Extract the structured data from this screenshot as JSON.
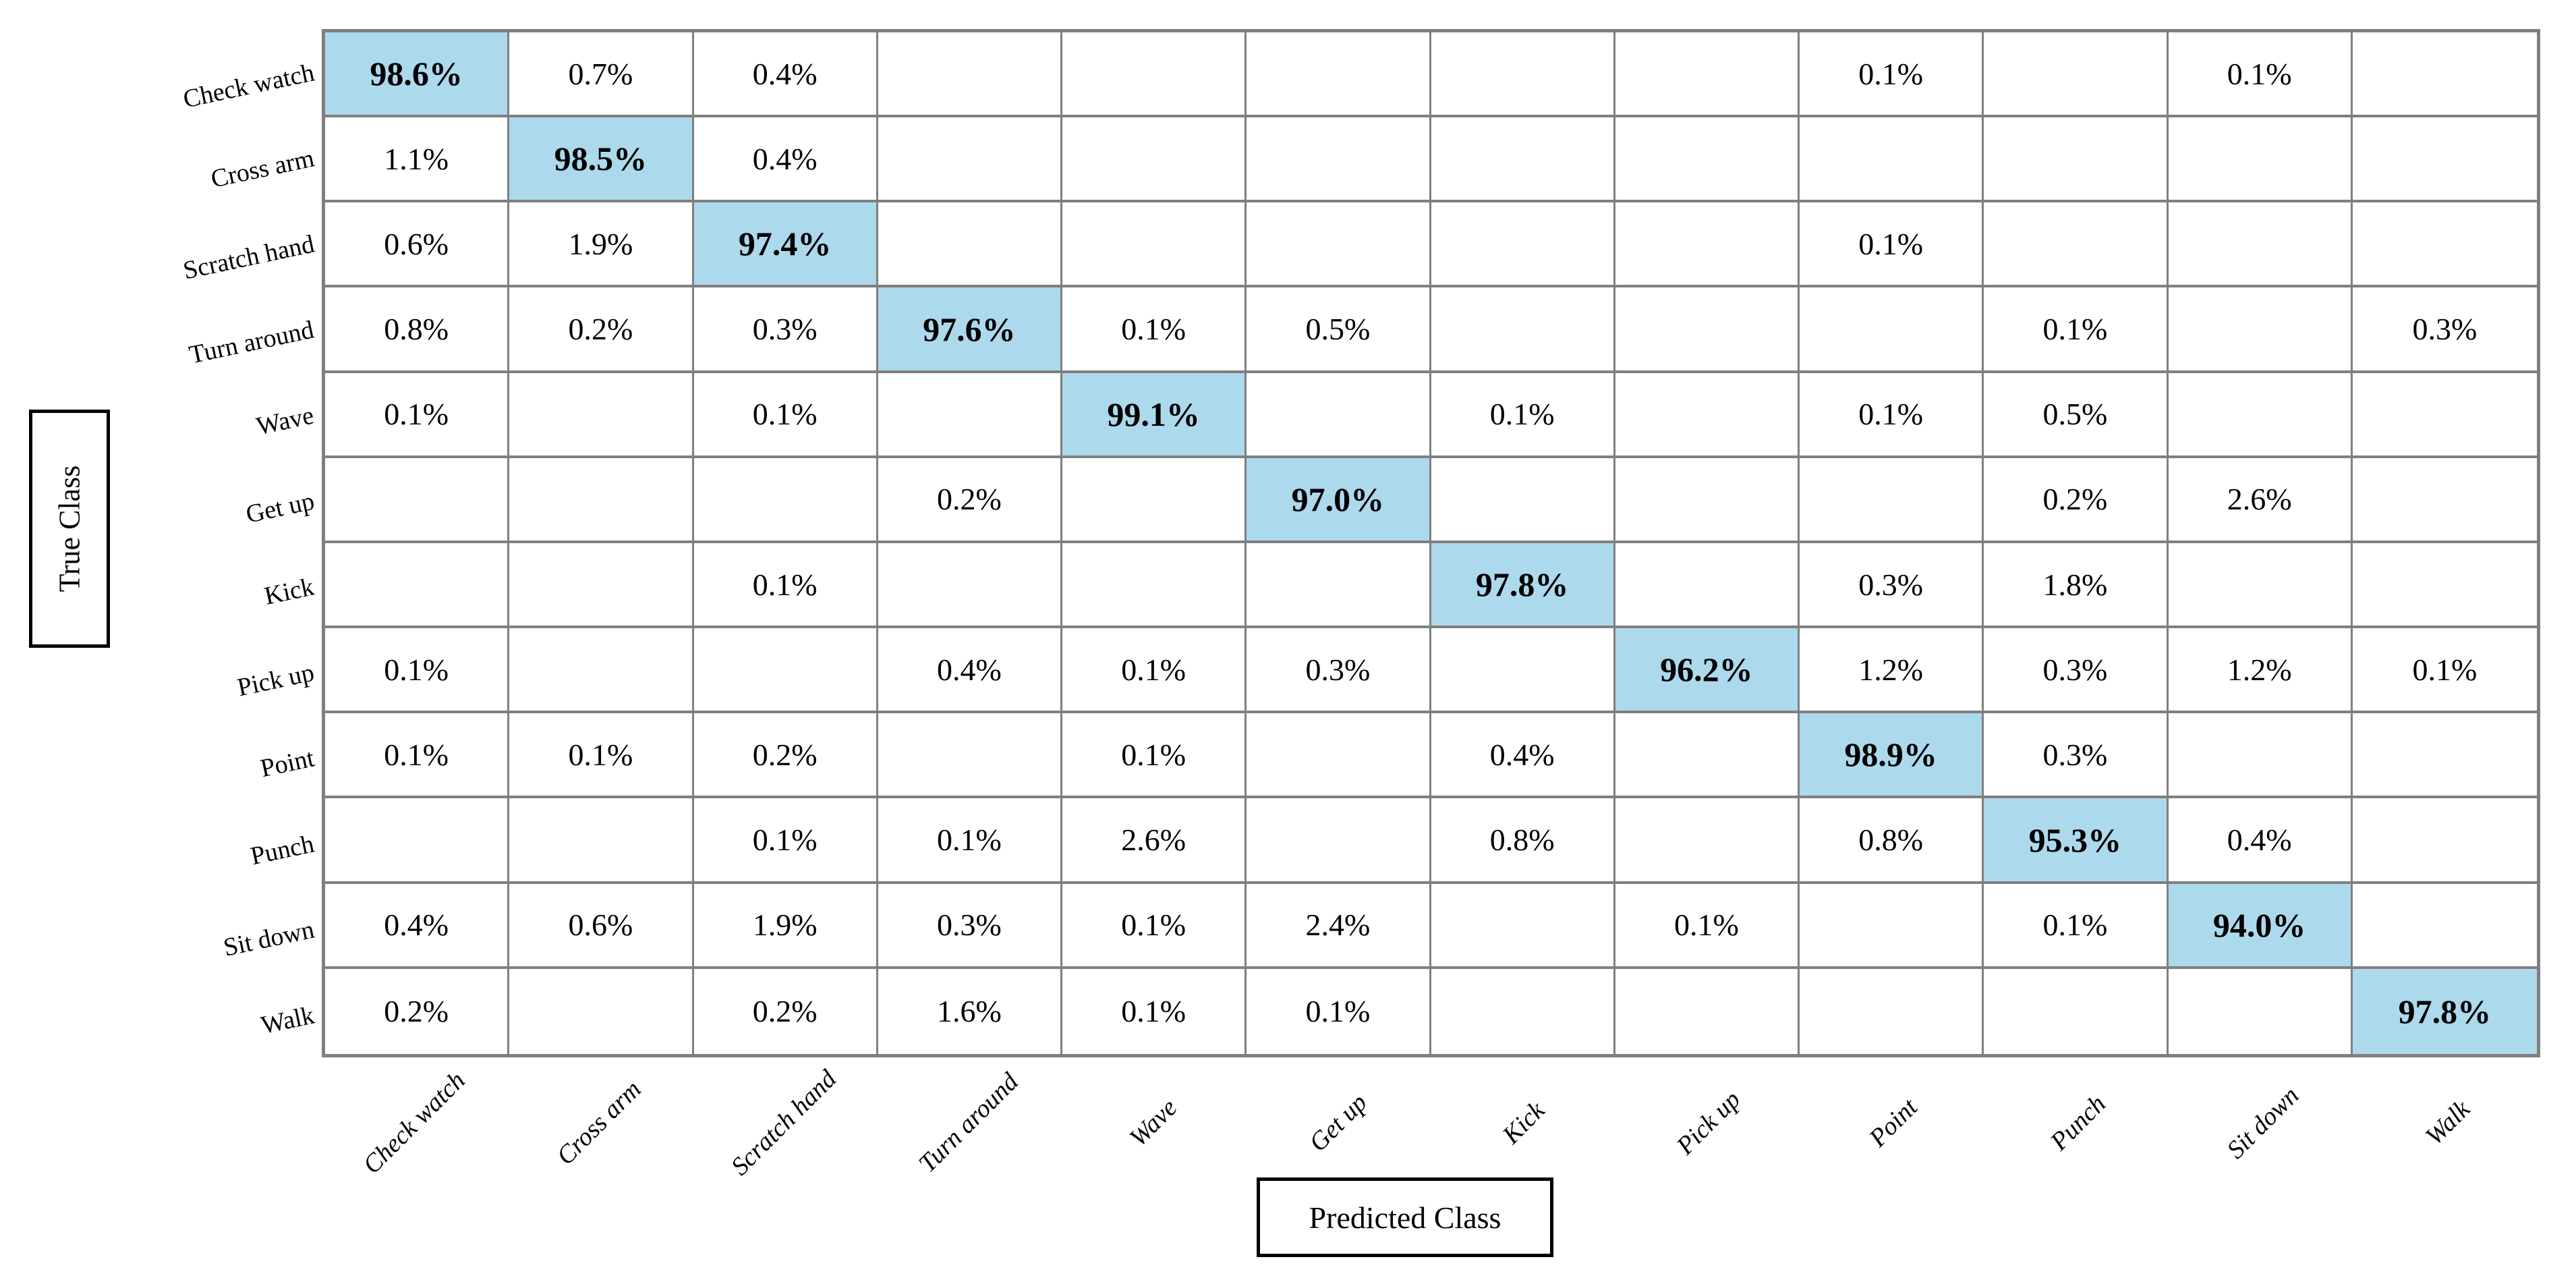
{
  "chart_data": {
    "type": "heatmap",
    "subtype": "confusion-matrix",
    "x_axis_label": "Predicted Class",
    "y_axis_label": "True Class",
    "categories": [
      "Check watch",
      "Cross arm",
      "Scratch hand",
      "Turn around",
      "Wave",
      "Get up",
      "Kick",
      "Pick up",
      "Point",
      "Punch",
      "Sit down",
      "Walk"
    ],
    "values_percent": [
      [
        98.6,
        0.7,
        0.4,
        null,
        null,
        null,
        null,
        null,
        0.1,
        null,
        0.1,
        null
      ],
      [
        1.1,
        98.5,
        0.4,
        null,
        null,
        null,
        null,
        null,
        null,
        null,
        null,
        null
      ],
      [
        0.6,
        1.9,
        97.4,
        null,
        null,
        null,
        null,
        null,
        0.1,
        null,
        null,
        null
      ],
      [
        0.8,
        0.2,
        0.3,
        97.6,
        0.1,
        0.5,
        null,
        null,
        null,
        0.1,
        null,
        0.3
      ],
      [
        0.1,
        null,
        0.1,
        null,
        99.1,
        null,
        0.1,
        null,
        0.1,
        0.5,
        null,
        null
      ],
      [
        null,
        null,
        null,
        0.2,
        null,
        97.0,
        null,
        null,
        null,
        0.2,
        2.6,
        null
      ],
      [
        null,
        null,
        0.1,
        null,
        null,
        null,
        97.8,
        null,
        0.3,
        1.8,
        null,
        null
      ],
      [
        0.1,
        null,
        null,
        0.4,
        0.1,
        0.3,
        null,
        96.2,
        1.2,
        0.3,
        1.2,
        0.1
      ],
      [
        0.1,
        0.1,
        0.2,
        null,
        0.1,
        null,
        0.4,
        null,
        98.9,
        0.3,
        null,
        null
      ],
      [
        null,
        null,
        0.1,
        0.1,
        2.6,
        null,
        0.8,
        null,
        0.8,
        95.3,
        0.4,
        null
      ],
      [
        0.4,
        0.6,
        1.9,
        0.3,
        0.1,
        2.4,
        null,
        0.1,
        null,
        0.1,
        94.0,
        null
      ],
      [
        0.2,
        null,
        0.2,
        1.6,
        0.1,
        0.1,
        null,
        null,
        null,
        null,
        null,
        97.8
      ]
    ],
    "cell_labels": [
      [
        "98.6%",
        "0.7%",
        "0.4%",
        "",
        "",
        "",
        "",
        "",
        "0.1%",
        "",
        "0.1%",
        ""
      ],
      [
        "1.1%",
        "98.5%",
        "0.4%",
        "",
        "",
        "",
        "",
        "",
        "",
        "",
        "",
        ""
      ],
      [
        "0.6%",
        "1.9%",
        "97.4%",
        "",
        "",
        "",
        "",
        "",
        "0.1%",
        "",
        "",
        ""
      ],
      [
        "0.8%",
        "0.2%",
        "0.3%",
        "97.6%",
        "0.1%",
        "0.5%",
        "",
        "",
        "",
        "0.1%",
        "",
        "0.3%"
      ],
      [
        "0.1%",
        "",
        "0.1%",
        "",
        "99.1%",
        "",
        "0.1%",
        "",
        "0.1%",
        "0.5%",
        "",
        ""
      ],
      [
        "",
        "",
        "",
        "0.2%",
        "",
        "97.0%",
        "",
        "",
        "",
        "0.2%",
        "2.6%",
        ""
      ],
      [
        "",
        "",
        "0.1%",
        "",
        "",
        "",
        "97.8%",
        "",
        "0.3%",
        "1.8%",
        "",
        ""
      ],
      [
        "0.1%",
        "",
        "",
        "0.4%",
        "0.1%",
        "0.3%",
        "",
        "96.2%",
        "1.2%",
        "0.3%",
        "1.2%",
        "0.1%"
      ],
      [
        "0.1%",
        "0.1%",
        "0.2%",
        "",
        "0.1%",
        "",
        "0.4%",
        "",
        "98.9%",
        "0.3%",
        "",
        ""
      ],
      [
        "",
        "",
        "0.1%",
        "0.1%",
        "2.6%",
        "",
        "0.8%",
        "",
        "0.8%",
        "95.3%",
        "0.4%",
        ""
      ],
      [
        "0.4%",
        "0.6%",
        "1.9%",
        "0.3%",
        "0.1%",
        "2.4%",
        "",
        "0.1%",
        "",
        "0.1%",
        "94.0%",
        ""
      ],
      [
        "0.2%",
        "",
        "0.2%",
        "1.6%",
        "0.1%",
        "0.1%",
        "",
        "",
        "",
        "",
        "",
        "97.8%"
      ]
    ],
    "layout": {
      "highlight": "diagonal",
      "grid": true,
      "legend": "none"
    },
    "colors": {
      "diagonal_fill": "#ADD9EC",
      "grid_line": "#7F7F7F",
      "text": "#000000",
      "background": "#FFFFFF"
    }
  }
}
